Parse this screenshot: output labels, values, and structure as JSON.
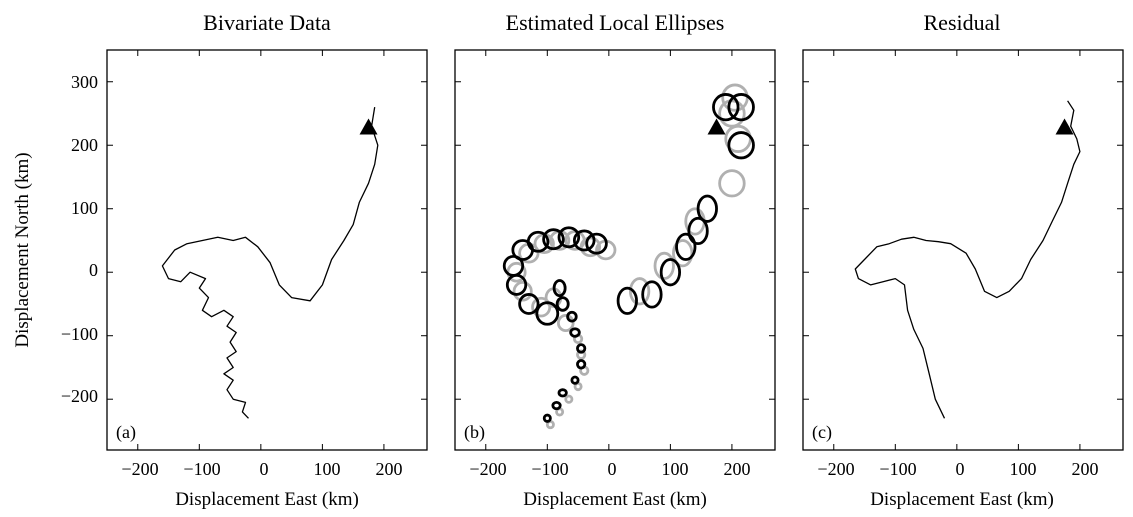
{
  "chart_data": [
    {
      "type": "line",
      "title": "Bivariate Data",
      "panel_label": "(a)",
      "xlabel": "Displacement East (km)",
      "ylabel": "Displacement North (km)",
      "xlim": [
        -250,
        270
      ],
      "ylim": [
        -280,
        350
      ],
      "xticks": [
        "−200",
        "−100",
        "0",
        "100",
        "200"
      ],
      "yticks": [
        "300",
        "200",
        "100",
        "0",
        "−100",
        "−200"
      ],
      "grid": false,
      "series": [
        {
          "style": "trajectory",
          "points": [
            [
              -20,
              -230
            ],
            [
              -30,
              -220
            ],
            [
              -25,
              -205
            ],
            [
              -45,
              -200
            ],
            [
              -55,
              -185
            ],
            [
              -45,
              -170
            ],
            [
              -60,
              -160
            ],
            [
              -45,
              -150
            ],
            [
              -55,
              -135
            ],
            [
              -40,
              -125
            ],
            [
              -50,
              -110
            ],
            [
              -40,
              -95
            ],
            [
              -55,
              -85
            ],
            [
              -45,
              -70
            ],
            [
              -60,
              -60
            ],
            [
              -80,
              -70
            ],
            [
              -95,
              -60
            ],
            [
              -85,
              -40
            ],
            [
              -100,
              -25
            ],
            [
              -90,
              -10
            ],
            [
              -115,
              0
            ],
            [
              -130,
              -15
            ],
            [
              -150,
              -10
            ],
            [
              -160,
              10
            ],
            [
              -140,
              35
            ],
            [
              -120,
              45
            ],
            [
              -95,
              50
            ],
            [
              -70,
              55
            ],
            [
              -45,
              50
            ],
            [
              -25,
              55
            ],
            [
              -5,
              40
            ],
            [
              15,
              15
            ],
            [
              30,
              -20
            ],
            [
              50,
              -40
            ],
            [
              80,
              -45
            ],
            [
              100,
              -20
            ],
            [
              115,
              20
            ],
            [
              135,
              50
            ],
            [
              150,
              75
            ],
            [
              160,
              110
            ],
            [
              175,
              140
            ],
            [
              185,
              170
            ],
            [
              190,
              200
            ],
            [
              180,
              230
            ],
            [
              185,
              260
            ]
          ]
        }
      ],
      "markers": [
        {
          "symbol": "triangle",
          "x": 175,
          "y": 228
        }
      ]
    },
    {
      "type": "line",
      "title": "Estimated Local Ellipses",
      "panel_label": "(b)",
      "xlabel": "Displacement East (km)",
      "xlim": [
        -250,
        270
      ],
      "ylim": [
        -280,
        350
      ],
      "xticks": [
        "−200",
        "−100",
        "0",
        "100",
        "200"
      ],
      "grid": false,
      "ellipses_black": [
        [
          -100,
          -230,
          5,
          5
        ],
        [
          -85,
          -210,
          6,
          5
        ],
        [
          -75,
          -190,
          6,
          5
        ],
        [
          -55,
          -170,
          5,
          5
        ],
        [
          -45,
          -145,
          6,
          6
        ],
        [
          -45,
          -120,
          6,
          6
        ],
        [
          -55,
          -95,
          7,
          6
        ],
        [
          -60,
          -70,
          7,
          7
        ],
        [
          -75,
          -50,
          9,
          10
        ],
        [
          -80,
          -25,
          9,
          12
        ],
        [
          -100,
          -65,
          17,
          17
        ],
        [
          -130,
          -50,
          15,
          15
        ],
        [
          -150,
          -20,
          15,
          15
        ],
        [
          -155,
          10,
          15,
          15
        ],
        [
          -140,
          35,
          16,
          15
        ],
        [
          -115,
          48,
          16,
          15
        ],
        [
          -90,
          52,
          16,
          15
        ],
        [
          -65,
          55,
          16,
          15
        ],
        [
          -40,
          50,
          16,
          15
        ],
        [
          -20,
          45,
          16,
          15
        ],
        [
          30,
          -45,
          15,
          20
        ],
        [
          70,
          -35,
          15,
          20
        ],
        [
          100,
          0,
          15,
          20
        ],
        [
          125,
          40,
          15,
          20
        ],
        [
          145,
          65,
          15,
          20
        ],
        [
          160,
          100,
          15,
          20
        ],
        [
          215,
          200,
          20,
          20
        ],
        [
          190,
          260,
          20,
          20
        ],
        [
          215,
          260,
          20,
          20
        ]
      ],
      "ellipses_gray": [
        [
          -95,
          -240,
          5,
          5
        ],
        [
          -80,
          -220,
          5,
          5
        ],
        [
          -65,
          -200,
          5,
          5
        ],
        [
          -50,
          -180,
          5,
          5
        ],
        [
          -40,
          -155,
          6,
          6
        ],
        [
          -45,
          -130,
          6,
          6
        ],
        [
          -50,
          -105,
          6,
          6
        ],
        [
          -70,
          -80,
          12,
          12
        ],
        [
          -90,
          -40,
          12,
          14
        ],
        [
          -110,
          -55,
          14,
          14
        ],
        [
          -140,
          -30,
          14,
          14
        ],
        [
          -150,
          0,
          14,
          14
        ],
        [
          -130,
          30,
          15,
          14
        ],
        [
          -105,
          45,
          15,
          14
        ],
        [
          -80,
          50,
          15,
          14
        ],
        [
          -55,
          50,
          15,
          14
        ],
        [
          -30,
          40,
          15,
          14
        ],
        [
          -5,
          35,
          15,
          14
        ],
        [
          50,
          -30,
          15,
          20
        ],
        [
          90,
          10,
          15,
          20
        ],
        [
          120,
          30,
          15,
          20
        ],
        [
          140,
          80,
          15,
          20
        ],
        [
          200,
          140,
          20,
          20
        ],
        [
          210,
          210,
          20,
          20
        ],
        [
          200,
          250,
          20,
          20
        ],
        [
          205,
          275,
          20,
          20
        ]
      ],
      "markers": [
        {
          "symbol": "triangle",
          "x": 175,
          "y": 228
        }
      ]
    },
    {
      "type": "line",
      "title": "Residual",
      "panel_label": "(c)",
      "xlabel": "Displacement East (km)",
      "xlim": [
        -250,
        270
      ],
      "ylim": [
        -280,
        350
      ],
      "xticks": [
        "−200",
        "−100",
        "0",
        "100",
        "200"
      ],
      "grid": false,
      "series": [
        {
          "style": "trajectory",
          "points": [
            [
              -20,
              -230
            ],
            [
              -35,
              -200
            ],
            [
              -45,
              -160
            ],
            [
              -55,
              -120
            ],
            [
              -70,
              -90
            ],
            [
              -80,
              -60
            ],
            [
              -85,
              -20
            ],
            [
              -100,
              -10
            ],
            [
              -120,
              -15
            ],
            [
              -140,
              -20
            ],
            [
              -160,
              -10
            ],
            [
              -165,
              5
            ],
            [
              -150,
              20
            ],
            [
              -130,
              40
            ],
            [
              -110,
              45
            ],
            [
              -90,
              52
            ],
            [
              -70,
              55
            ],
            [
              -50,
              50
            ],
            [
              -30,
              48
            ],
            [
              -10,
              45
            ],
            [
              15,
              30
            ],
            [
              30,
              5
            ],
            [
              45,
              -30
            ],
            [
              65,
              -40
            ],
            [
              85,
              -30
            ],
            [
              105,
              -10
            ],
            [
              120,
              20
            ],
            [
              140,
              50
            ],
            [
              155,
              80
            ],
            [
              170,
              110
            ],
            [
              180,
              140
            ],
            [
              190,
              170
            ],
            [
              200,
              190
            ],
            [
              195,
              210
            ],
            [
              185,
              230
            ],
            [
              190,
              255
            ],
            [
              180,
              270
            ]
          ]
        }
      ],
      "markers": [
        {
          "symbol": "triangle",
          "x": 175,
          "y": 228
        }
      ]
    }
  ]
}
